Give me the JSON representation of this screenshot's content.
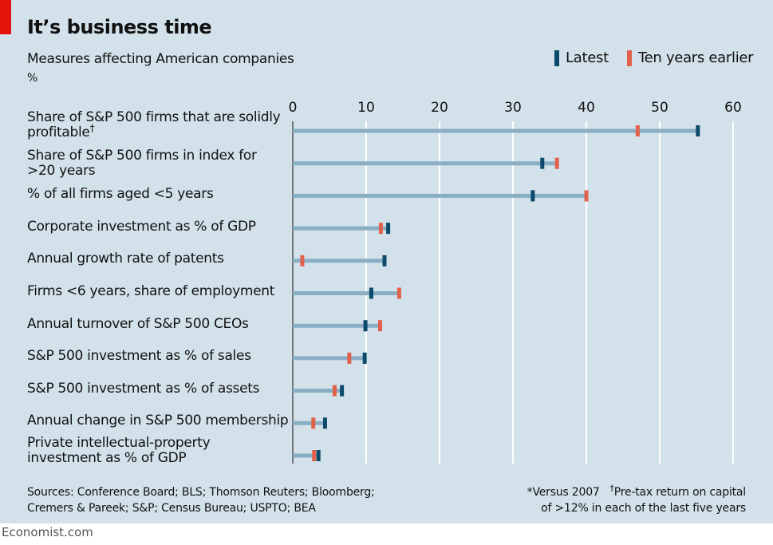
{
  "chart_data": {
    "type": "range-dot",
    "title": "It’s business time",
    "subtitle": "Measures affecting American companies",
    "unit": "%",
    "xlim": [
      0,
      60
    ],
    "xticks": [
      0,
      10,
      20,
      30,
      40,
      50,
      60
    ],
    "grid": true,
    "legend": {
      "placement": "top-right",
      "entries": [
        {
          "name": "Latest",
          "color": "#0c4a6b"
        },
        {
          "name": "Ten years earlier",
          "color": "#e1614c"
        }
      ]
    },
    "categories": [
      {
        "label": "Share of S&P 500 firms that are solidly profitable",
        "dagger": "†",
        "latest": 55.2,
        "earlier": 47.0
      },
      {
        "label": "Share of S&P 500 firms in index for >20 years",
        "latest": 34.0,
        "earlier": 36.0
      },
      {
        "label": "% of all firms aged <5 years",
        "latest": 32.7,
        "earlier": 40.0
      },
      {
        "label": "Corporate investment as % of GDP",
        "latest": 13.0,
        "earlier": 12.0
      },
      {
        "label": "Annual growth rate of patents",
        "latest": 12.5,
        "earlier": 1.3
      },
      {
        "label": "Firms <6 years, share of employment",
        "latest": 10.7,
        "earlier": 14.5
      },
      {
        "label": "Annual turnover of S&P 500 CEOs",
        "latest": 9.9,
        "earlier": 11.9
      },
      {
        "label": "S&P 500 investment as % of sales",
        "latest": 9.8,
        "earlier": 7.7
      },
      {
        "label": "S&P 500 investment as % of assets",
        "latest": 6.7,
        "earlier": 5.7
      },
      {
        "label": "Annual change in S&P 500 membership",
        "latest": 4.4,
        "earlier": 2.8
      },
      {
        "label": "Private intellectual-property investment as % of GDP",
        "latest": 3.5,
        "earlier": 2.9
      }
    ],
    "colors": {
      "bar": "#8aaec3",
      "grid": "#ffffff",
      "axis": "#555555"
    }
  },
  "labels": {
    "row0_line1": "Share of S&P 500 firms that are solidly",
    "row0_line2": "profitable",
    "row0_dagger": "†",
    "row1_line1": "Share of S&P 500 firms in index for",
    "row1_line2": ">20 years",
    "row2": "% of all firms aged <5 years",
    "row3": "Corporate investment as % of GDP",
    "row4": "Annual growth rate of patents",
    "row5": "Firms <6 years, share of employment",
    "row6": "Annual turnover of S&P 500 CEOs",
    "row7": "S&P 500 investment as % of sales",
    "row8": "S&P 500 investment as % of assets",
    "row9": "Annual change in S&P 500 membership",
    "row10_line1": "Private intellectual-property",
    "row10_line2": "investment as % of GDP"
  },
  "footer": {
    "sources_line1": "Sources: Conference Board; BLS; Thomson Reuters; Bloomberg;",
    "sources_line2": "Cremers & Pareek; S&P; Census Bureau; USPTO; BEA",
    "note1": "*Versus 2007",
    "note2_mark": "†",
    "note2_line1": "Pre-tax return on capital",
    "note2_line2": "of >12% in each of the last five years",
    "brand": "Economist.com"
  }
}
